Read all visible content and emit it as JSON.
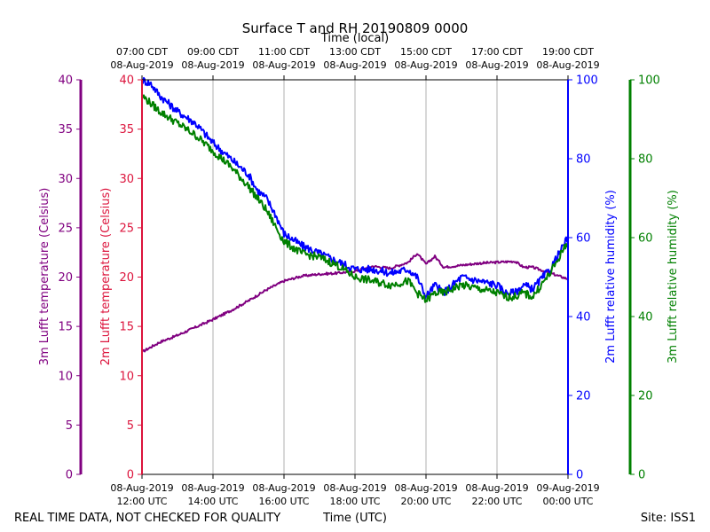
{
  "chart_data": {
    "type": "line",
    "title": "Surface T and RH 20190809 0000",
    "top_axis_label": "Time (local)",
    "bottom_axis_label": "Time (UTC)",
    "x_range_utc_hours": [
      12,
      24
    ],
    "bottom_ticks": [
      {
        "hour": 12,
        "date": "08-Aug-2019",
        "time": "12:00 UTC"
      },
      {
        "hour": 14,
        "date": "08-Aug-2019",
        "time": "14:00 UTC"
      },
      {
        "hour": 16,
        "date": "08-Aug-2019",
        "time": "16:00 UTC"
      },
      {
        "hour": 18,
        "date": "08-Aug-2019",
        "time": "18:00 UTC"
      },
      {
        "hour": 20,
        "date": "08-Aug-2019",
        "time": "20:00 UTC"
      },
      {
        "hour": 22,
        "date": "08-Aug-2019",
        "time": "22:00 UTC"
      },
      {
        "hour": 24,
        "date": "09-Aug-2019",
        "time": "00:00 UTC"
      }
    ],
    "top_ticks": [
      {
        "hour": 12,
        "time": "07:00 CDT",
        "date": "08-Aug-2019"
      },
      {
        "hour": 14,
        "time": "09:00 CDT",
        "date": "08-Aug-2019"
      },
      {
        "hour": 16,
        "time": "11:00 CDT",
        "date": "08-Aug-2019"
      },
      {
        "hour": 18,
        "time": "13:00 CDT",
        "date": "08-Aug-2019"
      },
      {
        "hour": 20,
        "time": "15:00 CDT",
        "date": "08-Aug-2019"
      },
      {
        "hour": 22,
        "time": "17:00 CDT",
        "date": "08-Aug-2019"
      },
      {
        "hour": 24,
        "time": "19:00 CDT",
        "date": "08-Aug-2019"
      }
    ],
    "axes": {
      "temp3m": {
        "label": "3m Lufft temperature (Celsius)",
        "ylim": [
          0,
          40
        ],
        "ticks": [
          0,
          5,
          10,
          15,
          20,
          25,
          30,
          35,
          40
        ],
        "color": "#800080"
      },
      "temp2m": {
        "label": "2m Lufft temperature (Celsius)",
        "ylim": [
          0,
          40
        ],
        "ticks": [
          0,
          5,
          10,
          15,
          20,
          25,
          30,
          35,
          40
        ],
        "color": "#dc143c"
      },
      "rh2m": {
        "label": "2m Lufft relative humidity (%)",
        "ylim": [
          0,
          100
        ],
        "ticks": [
          0,
          20,
          40,
          60,
          80,
          100
        ],
        "color": "#0000ff"
      },
      "rh3m": {
        "label": "3m Lufft relative humidity (%)",
        "ylim": [
          0,
          100
        ],
        "ticks": [
          0,
          20,
          40,
          60,
          80,
          100
        ],
        "color": "#008000"
      }
    },
    "series": [
      {
        "name": "3m Lufft temperature",
        "axis": "temp3m",
        "color": "#800080",
        "x": [
          12.0,
          12.5,
          13.0,
          13.5,
          14.0,
          14.5,
          15.0,
          15.5,
          16.0,
          16.5,
          17.0,
          17.5,
          18.0,
          18.5,
          19.0,
          19.5,
          19.75,
          20.0,
          20.25,
          20.5,
          21.0,
          21.5,
          22.0,
          22.5,
          22.75,
          23.0,
          23.5,
          24.0
        ],
        "y": [
          12.4,
          13.4,
          14.1,
          14.9,
          15.7,
          16.6,
          17.6,
          18.7,
          19.6,
          20.1,
          20.3,
          20.4,
          20.6,
          21.1,
          20.9,
          21.5,
          22.4,
          21.3,
          22.1,
          21.0,
          21.2,
          21.4,
          21.5,
          21.6,
          21.0,
          21.0,
          20.4,
          19.8
        ]
      },
      {
        "name": "2m Lufft relative humidity",
        "axis": "rh2m",
        "color": "#0000ff",
        "x": [
          12.0,
          12.25,
          12.5,
          13.0,
          13.5,
          14.0,
          14.5,
          15.0,
          15.25,
          15.5,
          15.75,
          16.0,
          16.5,
          17.0,
          17.5,
          18.0,
          18.5,
          19.0,
          19.5,
          19.75,
          20.0,
          20.25,
          20.5,
          21.0,
          21.5,
          22.0,
          22.25,
          22.5,
          22.75,
          23.0,
          23.5,
          24.0
        ],
        "y": [
          100,
          99,
          96,
          92,
          89,
          84,
          80,
          76,
          72,
          70,
          66,
          61,
          58,
          56,
          54,
          52,
          52,
          51,
          52,
          50,
          45,
          48,
          46,
          50,
          49,
          48,
          46,
          46,
          48,
          47,
          52,
          60
        ]
      },
      {
        "name": "3m Lufft relative humidity",
        "axis": "rh3m",
        "color": "#008000",
        "x": [
          12.0,
          12.25,
          12.5,
          13.0,
          13.5,
          14.0,
          14.5,
          15.0,
          15.25,
          15.5,
          15.75,
          16.0,
          16.5,
          17.0,
          17.5,
          18.0,
          18.5,
          19.0,
          19.5,
          19.75,
          20.0,
          20.25,
          20.5,
          21.0,
          21.5,
          22.0,
          22.25,
          22.5,
          22.75,
          23.0,
          23.5,
          24.0
        ],
        "y": [
          96,
          94,
          92,
          89,
          86,
          82,
          78,
          73,
          70,
          67,
          63,
          59,
          56,
          55,
          53,
          50,
          49,
          48,
          49,
          46,
          44,
          46,
          46,
          48,
          47,
          46,
          45,
          45,
          46,
          45,
          51,
          59
        ]
      }
    ]
  },
  "footer": {
    "left_note": "REAL TIME DATA, NOT CHECKED FOR QUALITY",
    "site": "Site: ISS1"
  }
}
